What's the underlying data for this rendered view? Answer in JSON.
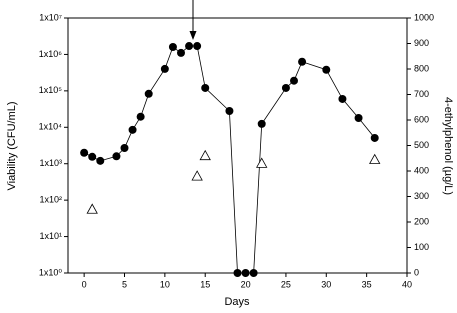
{
  "chart_data": {
    "type": "line",
    "xlabel": "Days",
    "ylabel": "Viability (CFU/mL)",
    "y2label": "4-ethylphenol (µg/L)",
    "xlim": [
      -2,
      40
    ],
    "xticks": [
      0,
      5,
      10,
      15,
      20,
      25,
      30,
      35,
      40
    ],
    "ylim": [
      1,
      10000000
    ],
    "yscale": "log",
    "yticks": [
      {
        "value": 1,
        "label": "1x10⁰"
      },
      {
        "value": 10,
        "label": "1x10¹"
      },
      {
        "value": 100,
        "label": "1x10²"
      },
      {
        "value": 1000,
        "label": "1x10³"
      },
      {
        "value": 10000,
        "label": "1x10⁴"
      },
      {
        "value": 100000,
        "label": "1x10⁵"
      },
      {
        "value": 1000000,
        "label": "1x10⁶"
      },
      {
        "value": 10000000,
        "label": "1x10⁷"
      }
    ],
    "y2lim": [
      0,
      1000
    ],
    "y2ticks": [
      0,
      100,
      200,
      300,
      400,
      500,
      600,
      700,
      800,
      900,
      1000
    ],
    "series": [
      {
        "color": "#000000",
        "marker": "filled-circle",
        "connected": true,
        "x": [
          0,
          1,
          2,
          4,
          5,
          6,
          7,
          8,
          10,
          11,
          12,
          13,
          14,
          15,
          18,
          19,
          20,
          21,
          22,
          25,
          26,
          27,
          30,
          32,
          34,
          36
        ],
        "values": [
          2000,
          1550,
          1200,
          1600,
          2700,
          8500,
          19500,
          83000,
          400000,
          1600000,
          1100000,
          1700000,
          1700000,
          120000,
          28000,
          1,
          1,
          1,
          12400,
          120000,
          190000,
          630000,
          380000,
          60000,
          18000,
          5100
        ]
      },
      {
        "color": "#000000",
        "marker": "open-triangle",
        "connected": false,
        "axis": "y2",
        "x": [
          1,
          14,
          15,
          22,
          36
        ],
        "values": [
          250,
          380,
          460,
          430,
          445
        ]
      }
    ]
  }
}
